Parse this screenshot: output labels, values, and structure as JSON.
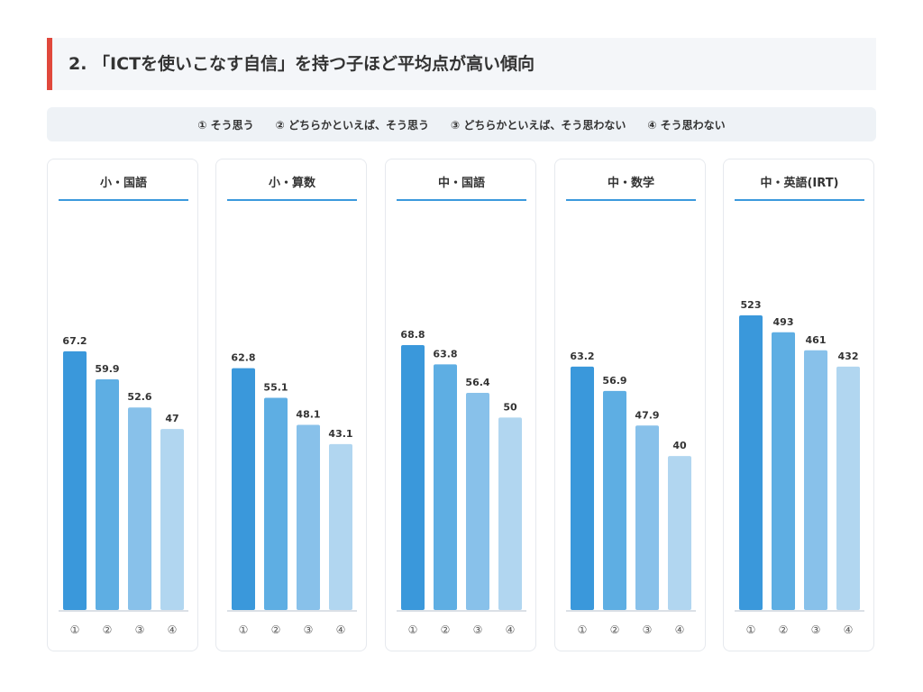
{
  "header": {
    "title": "2. 「ICTを使いこなす自信」を持つ子ほど平均点が高い傾向"
  },
  "legend": {
    "items": [
      "① そう思う",
      "② どちらかといえば、そう思う",
      "③ どちらかといえば、そう思わない",
      "④ そう思わない"
    ]
  },
  "colors": [
    "#3a98db",
    "#5eaee3",
    "#88c1ea",
    "#b1d6f0"
  ],
  "chart_data": [
    {
      "type": "bar",
      "title": "小・国語",
      "categories": [
        "①",
        "②",
        "③",
        "④"
      ],
      "values": [
        67.2,
        59.9,
        52.6,
        47
      ],
      "labels": [
        "67.2",
        "59.9",
        "52.6",
        "47"
      ]
    },
    {
      "type": "bar",
      "title": "小・算数",
      "categories": [
        "①",
        "②",
        "③",
        "④"
      ],
      "values": [
        62.8,
        55.1,
        48.1,
        43.1
      ],
      "labels": [
        "62.8",
        "55.1",
        "48.1",
        "43.1"
      ]
    },
    {
      "type": "bar",
      "title": "中・国語",
      "categories": [
        "①",
        "②",
        "③",
        "④"
      ],
      "values": [
        68.8,
        63.8,
        56.4,
        50
      ],
      "labels": [
        "68.8",
        "63.8",
        "56.4",
        "50"
      ]
    },
    {
      "type": "bar",
      "title": "中・数学",
      "categories": [
        "①",
        "②",
        "③",
        "④"
      ],
      "values": [
        63.2,
        56.9,
        47.9,
        40
      ],
      "labels": [
        "63.2",
        "56.9",
        "47.9",
        "40"
      ]
    },
    {
      "type": "bar",
      "title": "中・英語(IRT)",
      "categories": [
        "①",
        "②",
        "③",
        "④"
      ],
      "values": [
        523,
        493,
        461,
        432
      ],
      "labels": [
        "523",
        "493",
        "461",
        "432"
      ]
    }
  ]
}
